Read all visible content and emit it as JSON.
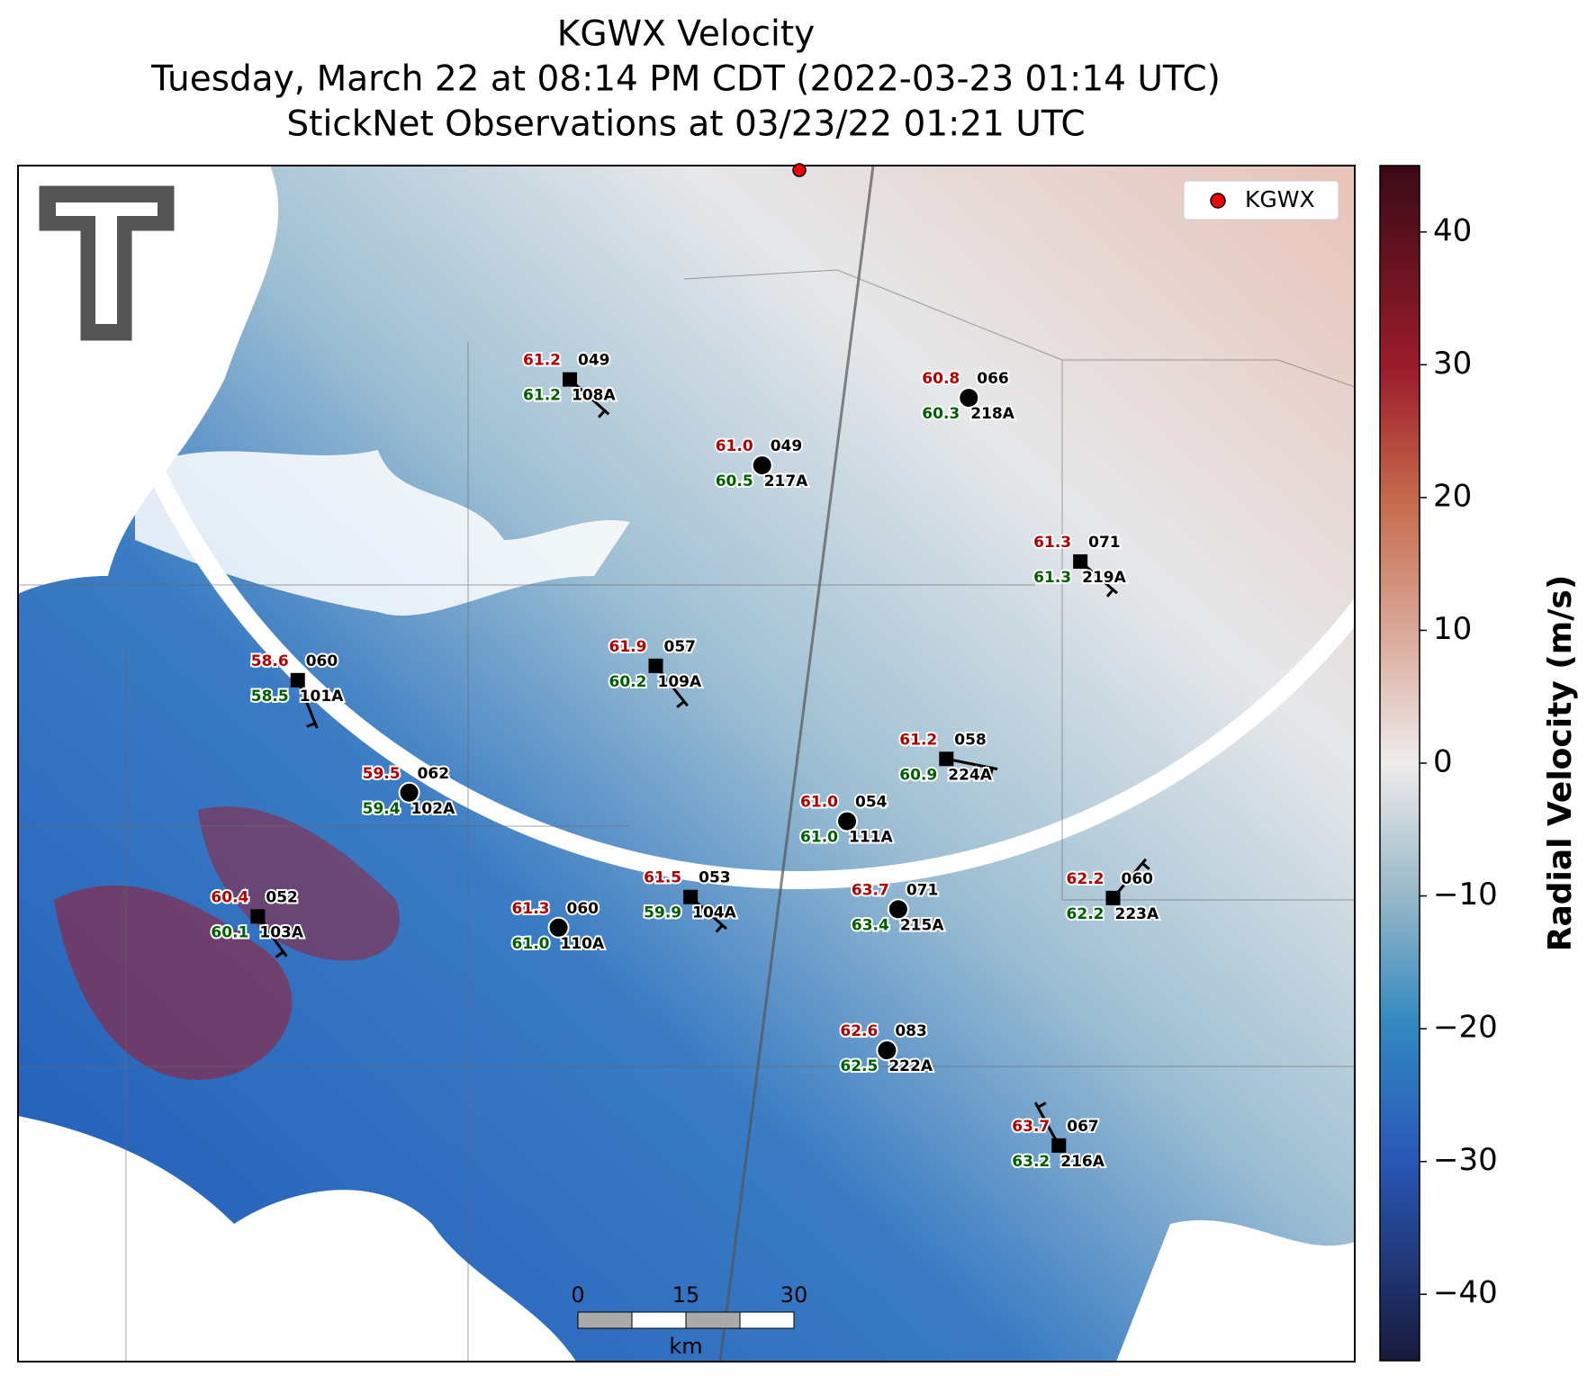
{
  "map": {
    "title": [
      "KGWX Velocity",
      "Tuesday, March 22 at 08:14 PM CDT (2022-03-23 01:14 UTC)",
      "StickNet Observations at 03/23/22 01:21 UTC"
    ],
    "legend": "KGWX",
    "colorbar": {
      "label": "Radial Velocity (m/s)",
      "lim": [
        -45,
        45
      ],
      "ticks": [
        {
          "value": -40,
          "label": "−40"
        },
        {
          "value": -30,
          "label": "−30"
        },
        {
          "value": -20,
          "label": "−20"
        },
        {
          "value": -10,
          "label": "−10"
        },
        0,
        10,
        20,
        30,
        40
      ]
    },
    "scale_bar": {
      "ticks": [
        0,
        15,
        30
      ],
      "unit": "km"
    },
    "stations": [
      {
        "id": "108A",
        "temp": "61.2",
        "dewpoint": "61.2",
        "pressure": "049"
      },
      {
        "id": "218A",
        "temp": "60.8",
        "dewpoint": "60.3",
        "pressure": "066"
      },
      {
        "id": "217A",
        "temp": "61.0",
        "dewpoint": "60.5",
        "pressure": "049"
      },
      {
        "id": "219A",
        "temp": "61.3",
        "dewpoint": "61.3",
        "pressure": "071"
      },
      {
        "id": "101A",
        "temp": "58.6",
        "dewpoint": "58.5",
        "pressure": "060"
      },
      {
        "id": "109A",
        "temp": "61.9",
        "dewpoint": "60.2",
        "pressure": "057"
      },
      {
        "id": "224A",
        "temp": "61.2",
        "dewpoint": "60.9",
        "pressure": "058"
      },
      {
        "id": "102A",
        "temp": "59.5",
        "dewpoint": "59.4",
        "pressure": "062"
      },
      {
        "id": "111A",
        "temp": "61.0",
        "dewpoint": "61.0",
        "pressure": "054"
      },
      {
        "id": "104A",
        "temp": "61.5",
        "dewpoint": "59.9",
        "pressure": "053"
      },
      {
        "id": "215A",
        "temp": "63.7",
        "dewpoint": "63.4",
        "pressure": "071"
      },
      {
        "id": "223A",
        "temp": "62.2",
        "dewpoint": "62.2",
        "pressure": "060"
      },
      {
        "id": "103A",
        "temp": "60.4",
        "dewpoint": "60.1",
        "pressure": "052"
      },
      {
        "id": "110A",
        "temp": "61.3",
        "dewpoint": "61.0",
        "pressure": "060"
      },
      {
        "id": "222A",
        "temp": "62.6",
        "dewpoint": "62.5",
        "pressure": "083"
      },
      {
        "id": "216A",
        "temp": "63.7",
        "dewpoint": "63.2",
        "pressure": "067"
      }
    ]
  }
}
